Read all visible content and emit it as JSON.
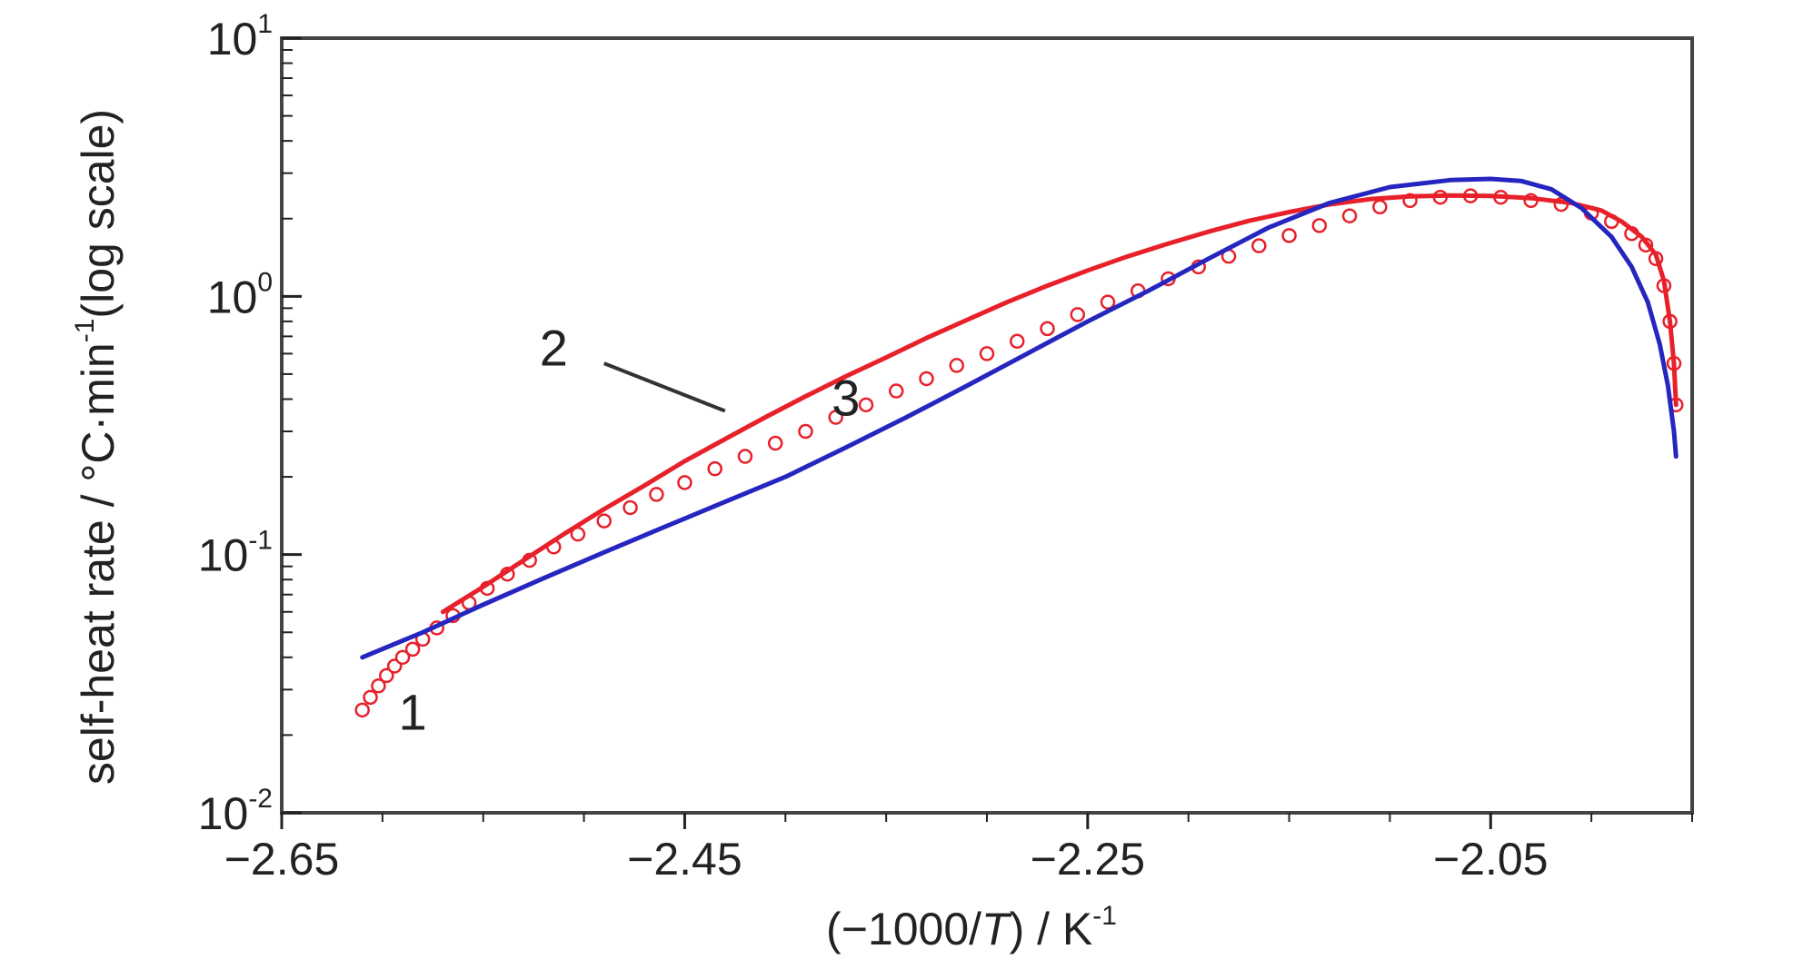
{
  "chart_data": {
    "type": "line",
    "title": "",
    "xlabel": {
      "prefix": "(−1000/",
      "italic": "T",
      "suffix": ") / K",
      "sup": "-1"
    },
    "ylabel": {
      "prefix": "self-heat rate / °C·min",
      "sup": "-1",
      "suffix": "(log scale)"
    },
    "xlim": [
      -2.65,
      -1.95
    ],
    "ylim": [
      0.01,
      10
    ],
    "yscale": "log",
    "grid": false,
    "x_ticks": [
      {
        "value": -2.65,
        "label": "−2.65"
      },
      {
        "value": -2.45,
        "label": "−2.45"
      },
      {
        "value": -2.25,
        "label": "−2.25"
      },
      {
        "value": -2.05,
        "label": "−2.05"
      }
    ],
    "y_ticks": [
      {
        "value": 0.01,
        "base": "10",
        "exp": "-2"
      },
      {
        "value": 0.1,
        "base": "10",
        "exp": "-1"
      },
      {
        "value": 1,
        "base": "10",
        "exp": "0"
      },
      {
        "value": 10,
        "base": "10",
        "exp": "1"
      }
    ],
    "series": [
      {
        "id": "s1",
        "style": "markers",
        "color": "#e8202a",
        "x": [
          -2.61,
          -2.606,
          -2.602,
          -2.598,
          -2.594,
          -2.59,
          -2.585,
          -2.58,
          -2.573,
          -2.565,
          -2.557,
          -2.548,
          -2.538,
          -2.527,
          -2.515,
          -2.503,
          -2.49,
          -2.477,
          -2.464,
          -2.45,
          -2.435,
          -2.42,
          -2.405,
          -2.39,
          -2.375,
          -2.36,
          -2.345,
          -2.33,
          -2.315,
          -2.3,
          -2.285,
          -2.27,
          -2.255,
          -2.24,
          -2.225,
          -2.21,
          -2.195,
          -2.18,
          -2.165,
          -2.15,
          -2.135,
          -2.12,
          -2.105,
          -2.09,
          -2.075,
          -2.06,
          -2.045,
          -2.03,
          -2.015,
          -2.0,
          -1.99,
          -1.98,
          -1.973,
          -1.968,
          -1.964,
          -1.961,
          -1.959,
          -1.958
        ],
        "y": [
          0.025,
          0.028,
          0.031,
          0.034,
          0.037,
          0.04,
          0.043,
          0.047,
          0.052,
          0.058,
          0.065,
          0.074,
          0.084,
          0.095,
          0.107,
          0.12,
          0.135,
          0.152,
          0.171,
          0.19,
          0.215,
          0.24,
          0.27,
          0.3,
          0.34,
          0.38,
          0.43,
          0.48,
          0.54,
          0.6,
          0.67,
          0.75,
          0.85,
          0.95,
          1.05,
          1.17,
          1.3,
          1.43,
          1.57,
          1.72,
          1.88,
          2.05,
          2.22,
          2.35,
          2.42,
          2.45,
          2.42,
          2.35,
          2.27,
          2.1,
          1.95,
          1.75,
          1.58,
          1.4,
          1.1,
          0.8,
          0.55,
          0.38
        ]
      },
      {
        "id": "s2",
        "style": "line",
        "color": "#e8202a",
        "x": [
          -2.57,
          -2.55,
          -2.53,
          -2.51,
          -2.49,
          -2.47,
          -2.45,
          -2.43,
          -2.41,
          -2.39,
          -2.37,
          -2.35,
          -2.33,
          -2.31,
          -2.29,
          -2.27,
          -2.25,
          -2.23,
          -2.21,
          -2.19,
          -2.17,
          -2.15,
          -2.13,
          -2.11,
          -2.09,
          -2.07,
          -2.05,
          -2.03,
          -2.01,
          -1.995,
          -1.985,
          -1.975,
          -1.968,
          -1.964,
          -1.961,
          -1.959,
          -1.958
        ],
        "y": [
          0.06,
          0.075,
          0.095,
          0.12,
          0.15,
          0.185,
          0.23,
          0.28,
          0.34,
          0.41,
          0.49,
          0.58,
          0.69,
          0.81,
          0.95,
          1.1,
          1.26,
          1.43,
          1.6,
          1.78,
          1.96,
          2.12,
          2.27,
          2.38,
          2.44,
          2.46,
          2.45,
          2.4,
          2.3,
          2.15,
          1.95,
          1.7,
          1.45,
          1.15,
          0.8,
          0.55,
          0.38
        ]
      },
      {
        "id": "s3",
        "style": "line",
        "color": "#2525c0",
        "x": [
          -2.61,
          -2.58,
          -2.55,
          -2.52,
          -2.49,
          -2.46,
          -2.43,
          -2.4,
          -2.37,
          -2.34,
          -2.31,
          -2.28,
          -2.25,
          -2.22,
          -2.19,
          -2.16,
          -2.13,
          -2.1,
          -2.07,
          -2.05,
          -2.035,
          -2.02,
          -2.005,
          -1.99,
          -1.98,
          -1.972,
          -1.966,
          -1.962,
          -1.959,
          -1.958
        ],
        "y": [
          0.04,
          0.05,
          0.064,
          0.081,
          0.102,
          0.128,
          0.16,
          0.2,
          0.26,
          0.34,
          0.45,
          0.6,
          0.8,
          1.05,
          1.4,
          1.85,
          2.3,
          2.65,
          2.82,
          2.85,
          2.8,
          2.6,
          2.2,
          1.7,
          1.3,
          0.95,
          0.65,
          0.45,
          0.3,
          0.24
        ]
      }
    ],
    "annotations": [
      {
        "text": "1",
        "x": -2.585,
        "y": 0.021
      },
      {
        "text": "2",
        "x": -2.515,
        "y": 0.54
      },
      {
        "text": "3",
        "x": -2.37,
        "y": 0.345
      }
    ],
    "leader": {
      "x1": -2.49,
      "y1": 0.55,
      "x2": -2.43,
      "y2": 0.36
    },
    "colors": {
      "red": "#e8202a",
      "blue": "#2525c0",
      "axis": "#222222",
      "frame": "#444444"
    }
  }
}
